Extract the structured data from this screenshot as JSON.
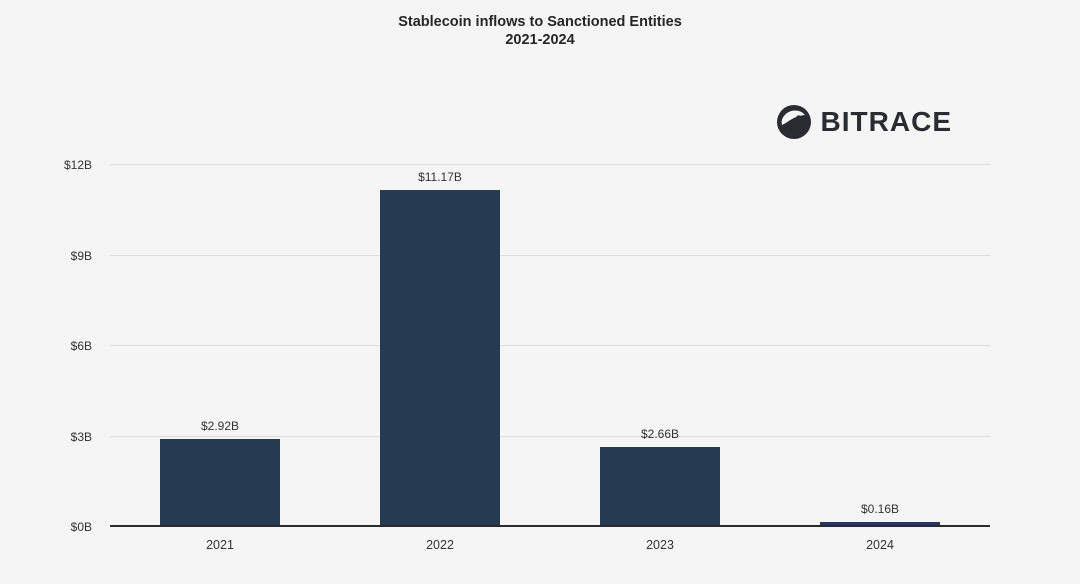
{
  "title": "Stablecoin inflows to Sanctioned Entities",
  "subtitle": "2021-2024",
  "brand": {
    "name": "BITRACE",
    "icon": "bitrace-globe-icon"
  },
  "colors": {
    "bar": "#263a51",
    "background": "#f5f5f5",
    "gridline": "#dcdcdc",
    "axis": "#2b2b2b",
    "text": "#333333",
    "brand_text": "#2a2c31"
  },
  "chart_data": {
    "type": "bar",
    "title": "Stablecoin inflows to Sanctioned Entities",
    "subtitle": "2021-2024",
    "categories": [
      "2021",
      "2022",
      "2023",
      "2024"
    ],
    "values": [
      2.92,
      11.17,
      2.66,
      0.16
    ],
    "data_labels": [
      "$2.92B",
      "$11.17B",
      "$2.66B",
      "$0.16B"
    ],
    "xlabel": "",
    "ylabel": "",
    "ylim": [
      0,
      12
    ],
    "ytick_values": [
      0,
      3,
      6,
      9,
      12
    ],
    "ytick_labels": [
      "$0B",
      "$3B",
      "$6B",
      "$9B",
      "$12B"
    ],
    "grid": true,
    "legend": false
  }
}
